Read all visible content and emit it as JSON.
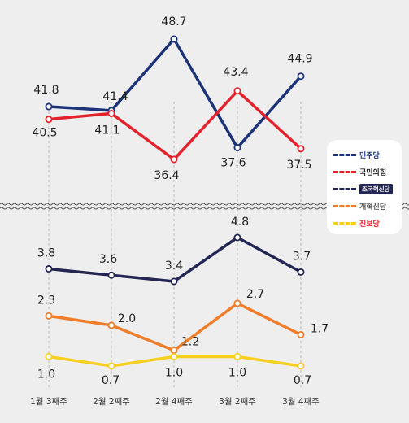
{
  "chart_data": {
    "type": "line",
    "categories": [
      "1월 3째주",
      "2월 2째주",
      "2월 4째주",
      "3월 2째주",
      "3월 4째주"
    ],
    "top_panel": {
      "series": [
        {
          "name": "민주당",
          "color": "#1d3378",
          "values": [
            41.8,
            41.4,
            48.7,
            37.6,
            44.9
          ],
          "labels": [
            "41.8",
            "41.4",
            "48.7",
            "37.6",
            "44.9"
          ]
        },
        {
          "name": "국민의힘",
          "color": "#e3222d",
          "values": [
            40.5,
            41.1,
            36.4,
            43.4,
            37.5
          ],
          "labels": [
            "40.5",
            "41.1",
            "36.4",
            "43.4",
            "37.5"
          ]
        }
      ]
    },
    "bottom_panel": {
      "series": [
        {
          "name": "조국혁신당",
          "color": "#232553",
          "values": [
            3.8,
            3.6,
            3.4,
            4.8,
            3.7
          ],
          "labels": [
            "3.8",
            "3.6",
            "3.4",
            "4.8",
            "3.7"
          ]
        },
        {
          "name": "개혁신당",
          "color": "#f07d2a",
          "values": [
            2.3,
            2.0,
            1.2,
            2.7,
            1.7
          ],
          "labels": [
            "2.3",
            "2.0",
            "1.2",
            "2.7",
            "1.7"
          ]
        },
        {
          "name": "진보당",
          "color": "#f7cf1e",
          "values": [
            1.0,
            0.7,
            1.0,
            1.0,
            0.7
          ],
          "labels": [
            "1.0",
            "0.7",
            "1.0",
            "1.0",
            "0.7"
          ]
        }
      ]
    },
    "legend": [
      {
        "label": "민주당",
        "color": "#1d3378",
        "text_color": "#1d3378",
        "boxed": false
      },
      {
        "label": "국민의힘",
        "color": "#e3222d",
        "text_color": "#222222",
        "boxed": false
      },
      {
        "label": "조국혁신당",
        "color": "#232553",
        "text_color": "#ffffff",
        "boxed": true
      },
      {
        "label": "개혁신당",
        "color": "#f07d2a",
        "text_color": "#555555",
        "boxed": false
      },
      {
        "label": "진보당",
        "color": "#f7cf1e",
        "text_color": "#e3222d",
        "boxed": false
      }
    ],
    "legend_position": "right",
    "grid": "vertical dashed per category",
    "axis_break": true
  }
}
